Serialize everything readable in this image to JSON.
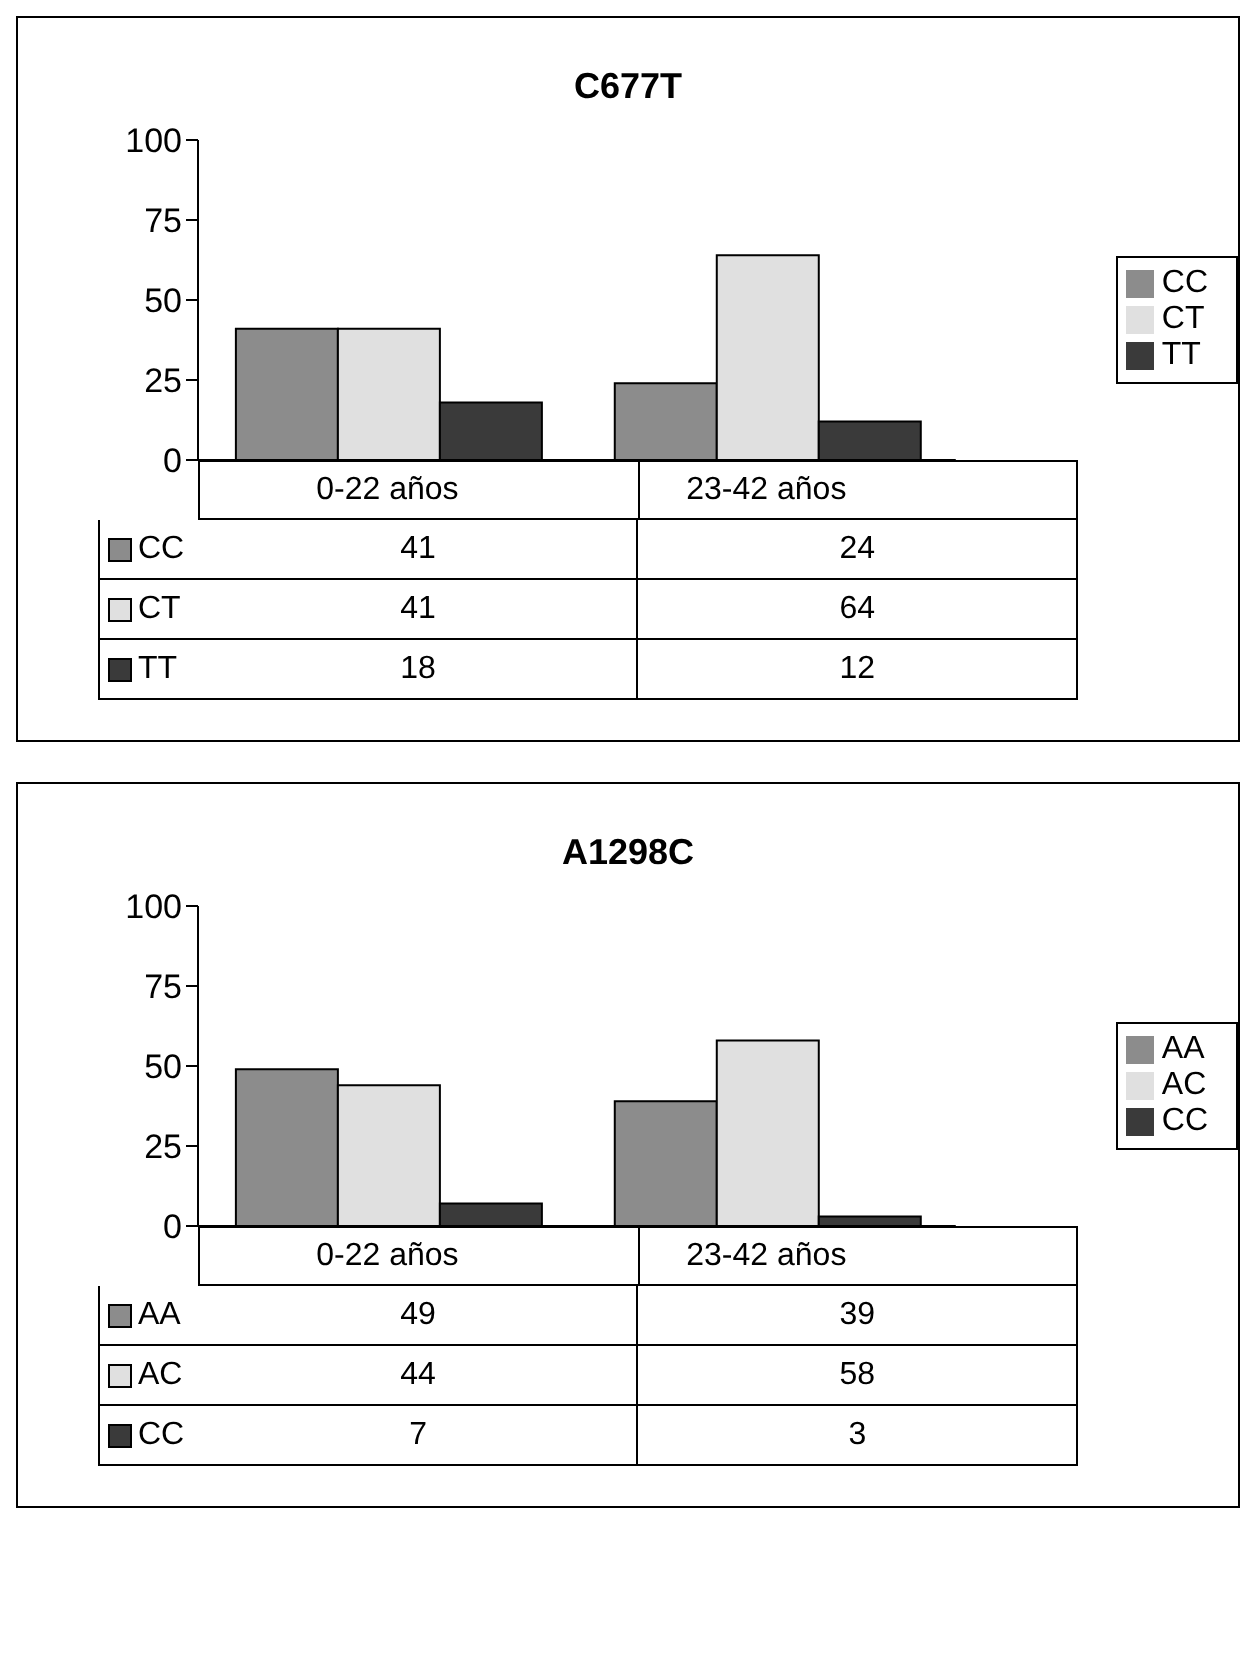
{
  "chart_data": [
    {
      "type": "bar",
      "title": "C677T",
      "categories": [
        "0-22 años",
        "23-42 años"
      ],
      "series": [
        {
          "name": "CC",
          "color": "#8c8c8c",
          "values": [
            41,
            24
          ]
        },
        {
          "name": "CT",
          "color": "#e0e0e0",
          "values": [
            41,
            64
          ]
        },
        {
          "name": "TT",
          "color": "#3a3a3a",
          "values": [
            18,
            12
          ]
        }
      ],
      "ylim": [
        0,
        100
      ],
      "yticks": [
        0,
        25,
        50,
        75,
        100
      ],
      "grid": false,
      "legend": "right",
      "data_labels": true
    },
    {
      "type": "bar",
      "title": "A1298C",
      "categories": [
        "0-22 años",
        "23-42 años"
      ],
      "series": [
        {
          "name": "AA",
          "color": "#8c8c8c",
          "values": [
            49,
            39
          ]
        },
        {
          "name": "AC",
          "color": "#e0e0e0",
          "values": [
            44,
            58
          ]
        },
        {
          "name": "CC",
          "color": "#3a3a3a",
          "values": [
            7,
            3
          ]
        }
      ],
      "ylim": [
        0,
        100
      ],
      "yticks": [
        0,
        25,
        50,
        75,
        100
      ],
      "grid": false,
      "legend": "right",
      "data_labels": true
    }
  ]
}
